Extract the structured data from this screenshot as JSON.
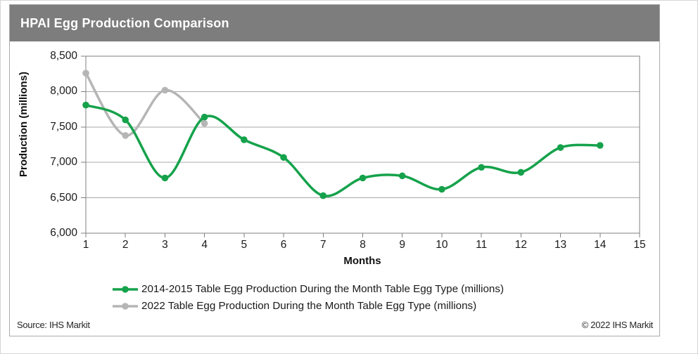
{
  "header": {
    "title": "HPAI Egg Production Comparison"
  },
  "chart_data": {
    "type": "line",
    "title": "HPAI Egg Production Comparison",
    "xlabel": "Months",
    "ylabel": "Production (millions)",
    "xlim": [
      1,
      15
    ],
    "ylim": [
      6000,
      8500
    ],
    "x_ticks": [
      1,
      2,
      3,
      4,
      5,
      6,
      7,
      8,
      9,
      10,
      11,
      12,
      13,
      14,
      15
    ],
    "y_ticks": [
      6000,
      6500,
      7000,
      7500,
      8000,
      8500
    ],
    "y_tick_labels": [
      "6,000",
      "6,500",
      "7,000",
      "7,500",
      "8,000",
      "8,500"
    ],
    "grid": true,
    "smooth_lines": true,
    "markers": true,
    "legend_position": "bottom",
    "series": [
      {
        "name": "2014-2015 Table Egg Production During the Month Table Egg Type (millions)",
        "color": "#15a24b",
        "x": [
          1,
          2,
          3,
          4,
          5,
          6,
          7,
          8,
          9,
          10,
          11,
          12,
          13,
          14
        ],
        "values": [
          7810,
          7600,
          6780,
          7640,
          7320,
          7070,
          6530,
          6780,
          6810,
          6620,
          6930,
          6860,
          7210,
          7240
        ]
      },
      {
        "name": "2022 Table Egg Production During the Month Table Egg Type  (millions)",
        "color": "#b5b5b5",
        "x": [
          1,
          2,
          3,
          4
        ],
        "values": [
          8260,
          7380,
          8020,
          7550
        ]
      }
    ]
  },
  "footer": {
    "source": "Source: IHS Markit",
    "copyright": "© 2022 IHS Markit"
  },
  "colors": {
    "header_background": "#7d7d7d",
    "title_text": "#ffffff",
    "gridline": "#a8a8a8",
    "axis": "#7f7f7f",
    "series_green": "#15a24b",
    "series_gray": "#b5b5b5"
  }
}
